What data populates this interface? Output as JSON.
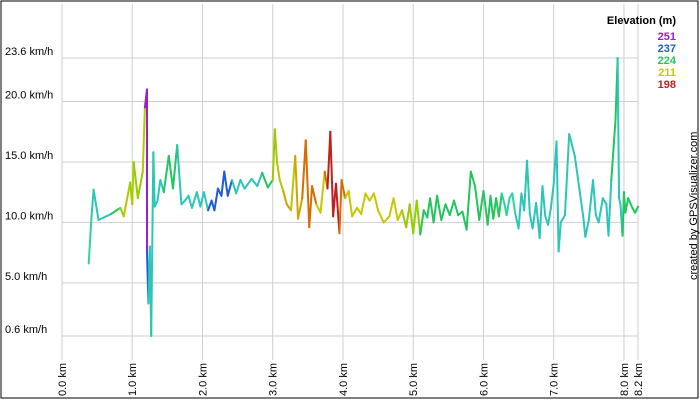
{
  "chart_data": {
    "type": "line",
    "credit": "created by GPSVisualizer.com",
    "legend": {
      "title": "Elevation (m)",
      "placement": "top-right",
      "entries": [
        {
          "label": "251",
          "color": "#9b1fd0"
        },
        {
          "label": "237",
          "color": "#1f5bd6"
        },
        {
          "label": "224",
          "color": "#22c55e"
        },
        {
          "label": "211",
          "color": "#c8c800"
        },
        {
          "label": "198",
          "color": "#c01e1e"
        }
      ]
    },
    "y_ticks": [
      {
        "value": 0.6,
        "label": "0.6 km/h"
      },
      {
        "value": 5.0,
        "label": "5.0 km/h"
      },
      {
        "value": 10.0,
        "label": "10.0 km/h"
      },
      {
        "value": 15.0,
        "label": "15.0 km/h"
      },
      {
        "value": 20.0,
        "label": "20.0 km/h"
      },
      {
        "value": 23.6,
        "label": "23.6 km/h"
      }
    ],
    "x_ticks": [
      {
        "value": 0.0,
        "label": "0.0 km"
      },
      {
        "value": 1.0,
        "label": "1.0 km"
      },
      {
        "value": 2.0,
        "label": "2.0 km"
      },
      {
        "value": 3.0,
        "label": "3.0 km"
      },
      {
        "value": 4.0,
        "label": "4.0 km"
      },
      {
        "value": 5.0,
        "label": "5.0 km"
      },
      {
        "value": 6.0,
        "label": "6.0 km"
      },
      {
        "value": 7.0,
        "label": "7.0 km"
      },
      {
        "value": 8.0,
        "label": "8.0 km"
      },
      {
        "value": 8.2,
        "label": "8.2 km"
      }
    ],
    "xlim": [
      0.0,
      8.2
    ],
    "ylim": [
      0.6,
      23.6
    ],
    "grid": true,
    "series": [
      {
        "color_by": "elevation",
        "points": [
          {
            "x": 0.38,
            "y": 6.6,
            "c": "#22c55e"
          },
          {
            "x": 0.42,
            "y": 10.5,
            "c": "#2ed3a0"
          },
          {
            "x": 0.45,
            "y": 12.7,
            "c": "#2bc6b8"
          },
          {
            "x": 0.52,
            "y": 10.2,
            "c": "#2bc6b8"
          },
          {
            "x": 0.7,
            "y": 10.7,
            "c": "#2bc6b8"
          },
          {
            "x": 0.83,
            "y": 11.2,
            "c": "#22c55e"
          },
          {
            "x": 0.88,
            "y": 10.5,
            "c": "#a0c800"
          },
          {
            "x": 0.97,
            "y": 13.3,
            "c": "#b5c800"
          },
          {
            "x": 1.0,
            "y": 11.5,
            "c": "#8cd200"
          },
          {
            "x": 1.02,
            "y": 15.0,
            "c": "#b5c800"
          },
          {
            "x": 1.08,
            "y": 12.0,
            "c": "#8cd200"
          },
          {
            "x": 1.15,
            "y": 14.2,
            "c": "#a0c800"
          },
          {
            "x": 1.18,
            "y": 19.5,
            "c": "#b5c800"
          },
          {
            "x": 1.21,
            "y": 21.0,
            "c": "#9b1fd0"
          },
          {
            "x": 1.21,
            "y": 7.5,
            "c": "#9b1fd0"
          },
          {
            "x": 1.23,
            "y": 3.3,
            "c": "#1f5bd6"
          },
          {
            "x": 1.25,
            "y": 8.0,
            "c": "#2bc6b8"
          },
          {
            "x": 1.27,
            "y": 0.6,
            "c": "#2bc6b8"
          },
          {
            "x": 1.3,
            "y": 15.8,
            "c": "#2bc6b8"
          },
          {
            "x": 1.32,
            "y": 11.3,
            "c": "#2bc6b8"
          },
          {
            "x": 1.36,
            "y": 11.8,
            "c": "#2bc6b8"
          },
          {
            "x": 1.4,
            "y": 13.5,
            "c": "#2bc6b8"
          },
          {
            "x": 1.45,
            "y": 12.5,
            "c": "#2bc6b8"
          },
          {
            "x": 1.52,
            "y": 15.5,
            "c": "#22c55e"
          },
          {
            "x": 1.58,
            "y": 12.8,
            "c": "#22c55e"
          },
          {
            "x": 1.64,
            "y": 16.4,
            "c": "#22c55e"
          },
          {
            "x": 1.7,
            "y": 11.5,
            "c": "#2bc6b8"
          },
          {
            "x": 1.75,
            "y": 11.8,
            "c": "#2bc6b8"
          },
          {
            "x": 1.8,
            "y": 12.2,
            "c": "#2bc6b8"
          },
          {
            "x": 1.85,
            "y": 11.2,
            "c": "#2bc6b8"
          },
          {
            "x": 1.92,
            "y": 12.5,
            "c": "#2bc6b8"
          },
          {
            "x": 1.97,
            "y": 11.3,
            "c": "#2bc6b8"
          },
          {
            "x": 2.02,
            "y": 12.5,
            "c": "#2bc6b8"
          },
          {
            "x": 2.08,
            "y": 11.0,
            "c": "#2bc6b8"
          },
          {
            "x": 2.13,
            "y": 11.8,
            "c": "#1f5bd6"
          },
          {
            "x": 2.17,
            "y": 11.0,
            "c": "#1f5bd6"
          },
          {
            "x": 2.22,
            "y": 12.8,
            "c": "#1f5bd6"
          },
          {
            "x": 2.27,
            "y": 12.2,
            "c": "#1f5bd6"
          },
          {
            "x": 2.31,
            "y": 14.2,
            "c": "#1f5bd6"
          },
          {
            "x": 2.36,
            "y": 12.2,
            "c": "#1f5bd6"
          },
          {
            "x": 2.42,
            "y": 13.5,
            "c": "#1f5bd6"
          },
          {
            "x": 2.48,
            "y": 12.4,
            "c": "#2bc6b8"
          },
          {
            "x": 2.54,
            "y": 13.5,
            "c": "#2bc6b8"
          },
          {
            "x": 2.6,
            "y": 12.8,
            "c": "#2bc6b8"
          },
          {
            "x": 2.7,
            "y": 13.6,
            "c": "#2bc6b8"
          },
          {
            "x": 2.78,
            "y": 13.0,
            "c": "#2bc6b8"
          },
          {
            "x": 2.85,
            "y": 14.1,
            "c": "#2bc6b8"
          },
          {
            "x": 2.93,
            "y": 12.9,
            "c": "#22c55e"
          },
          {
            "x": 3.0,
            "y": 13.5,
            "c": "#22c55e"
          },
          {
            "x": 3.03,
            "y": 17.7,
            "c": "#a0c800"
          },
          {
            "x": 3.06,
            "y": 15.0,
            "c": "#a0c800"
          },
          {
            "x": 3.1,
            "y": 13.5,
            "c": "#b5c800"
          },
          {
            "x": 3.15,
            "y": 12.6,
            "c": "#b5c800"
          },
          {
            "x": 3.2,
            "y": 11.5,
            "c": "#d4a200"
          },
          {
            "x": 3.26,
            "y": 11.0,
            "c": "#d4a200"
          },
          {
            "x": 3.32,
            "y": 15.5,
            "c": "#b5c800"
          },
          {
            "x": 3.36,
            "y": 10.3,
            "c": "#d4a200"
          },
          {
            "x": 3.42,
            "y": 12.0,
            "c": "#d4a200"
          },
          {
            "x": 3.47,
            "y": 16.8,
            "c": "#d46e00"
          },
          {
            "x": 3.52,
            "y": 9.6,
            "c": "#d46e00"
          },
          {
            "x": 3.56,
            "y": 13.0,
            "c": "#d46e00"
          },
          {
            "x": 3.62,
            "y": 11.5,
            "c": "#d46e00"
          },
          {
            "x": 3.68,
            "y": 10.8,
            "c": "#c8c800"
          },
          {
            "x": 3.74,
            "y": 14.2,
            "c": "#c8c800"
          },
          {
            "x": 3.78,
            "y": 12.8,
            "c": "#d46e00"
          },
          {
            "x": 3.82,
            "y": 17.5,
            "c": "#c01e1e"
          },
          {
            "x": 3.86,
            "y": 10.5,
            "c": "#c01e1e"
          },
          {
            "x": 3.9,
            "y": 13.2,
            "c": "#c01e1e"
          },
          {
            "x": 3.95,
            "y": 9.1,
            "c": "#c01e1e"
          },
          {
            "x": 3.98,
            "y": 13.5,
            "c": "#d46e00"
          },
          {
            "x": 4.03,
            "y": 12.0,
            "c": "#d46e00"
          },
          {
            "x": 4.08,
            "y": 12.6,
            "c": "#c8c800"
          },
          {
            "x": 4.13,
            "y": 10.5,
            "c": "#c8c800"
          },
          {
            "x": 4.2,
            "y": 11.2,
            "c": "#c8c800"
          },
          {
            "x": 4.26,
            "y": 10.7,
            "c": "#c8c800"
          },
          {
            "x": 4.32,
            "y": 12.4,
            "c": "#c8c800"
          },
          {
            "x": 4.38,
            "y": 11.8,
            "c": "#c8c800"
          },
          {
            "x": 4.44,
            "y": 12.4,
            "c": "#c8c800"
          },
          {
            "x": 4.5,
            "y": 11.0,
            "c": "#c8c800"
          },
          {
            "x": 4.58,
            "y": 10.0,
            "c": "#c8c800"
          },
          {
            "x": 4.66,
            "y": 10.5,
            "c": "#c8c800"
          },
          {
            "x": 4.72,
            "y": 12.0,
            "c": "#c8c800"
          },
          {
            "x": 4.78,
            "y": 10.2,
            "c": "#c8c800"
          },
          {
            "x": 4.84,
            "y": 11.0,
            "c": "#c8c800"
          },
          {
            "x": 4.9,
            "y": 9.6,
            "c": "#a0c800"
          },
          {
            "x": 4.95,
            "y": 11.5,
            "c": "#a0c800"
          },
          {
            "x": 5.0,
            "y": 9.1,
            "c": "#a0c800"
          },
          {
            "x": 5.05,
            "y": 11.8,
            "c": "#8cd200"
          },
          {
            "x": 5.1,
            "y": 9.0,
            "c": "#8cd200"
          },
          {
            "x": 5.15,
            "y": 11.0,
            "c": "#22c55e"
          },
          {
            "x": 5.2,
            "y": 10.4,
            "c": "#22c55e"
          },
          {
            "x": 5.24,
            "y": 12.0,
            "c": "#22c55e"
          },
          {
            "x": 5.29,
            "y": 10.0,
            "c": "#22c55e"
          },
          {
            "x": 5.34,
            "y": 12.2,
            "c": "#22c55e"
          },
          {
            "x": 5.4,
            "y": 10.2,
            "c": "#22c55e"
          },
          {
            "x": 5.46,
            "y": 11.5,
            "c": "#22c55e"
          },
          {
            "x": 5.52,
            "y": 10.6,
            "c": "#22c55e"
          },
          {
            "x": 5.58,
            "y": 11.8,
            "c": "#22c55e"
          },
          {
            "x": 5.64,
            "y": 10.6,
            "c": "#22c55e"
          },
          {
            "x": 5.7,
            "y": 10.9,
            "c": "#22c55e"
          },
          {
            "x": 5.76,
            "y": 9.4,
            "c": "#22c55e"
          },
          {
            "x": 5.82,
            "y": 14.2,
            "c": "#22c55e"
          },
          {
            "x": 5.88,
            "y": 13.0,
            "c": "#22c55e"
          },
          {
            "x": 5.94,
            "y": 10.2,
            "c": "#22c55e"
          },
          {
            "x": 6.0,
            "y": 12.6,
            "c": "#22c55e"
          },
          {
            "x": 6.06,
            "y": 9.8,
            "c": "#22c55e"
          },
          {
            "x": 6.1,
            "y": 12.2,
            "c": "#22c55e"
          },
          {
            "x": 6.14,
            "y": 10.3,
            "c": "#22c55e"
          },
          {
            "x": 6.18,
            "y": 12.0,
            "c": "#22c55e"
          },
          {
            "x": 6.22,
            "y": 10.5,
            "c": "#22c55e"
          },
          {
            "x": 6.26,
            "y": 12.4,
            "c": "#22c55e"
          },
          {
            "x": 6.3,
            "y": 11.5,
            "c": "#2ed3a0"
          },
          {
            "x": 6.33,
            "y": 10.6,
            "c": "#2ed3a0"
          },
          {
            "x": 6.37,
            "y": 12.0,
            "c": "#2ed3a0"
          },
          {
            "x": 6.41,
            "y": 12.4,
            "c": "#2ed3a0"
          },
          {
            "x": 6.45,
            "y": 10.8,
            "c": "#2ed3a0"
          },
          {
            "x": 6.5,
            "y": 9.5,
            "c": "#2bc6b8"
          },
          {
            "x": 6.54,
            "y": 12.4,
            "c": "#2bc6b8"
          },
          {
            "x": 6.58,
            "y": 11.0,
            "c": "#2bc6b8"
          },
          {
            "x": 6.62,
            "y": 15.1,
            "c": "#2bc6b8"
          },
          {
            "x": 6.66,
            "y": 10.7,
            "c": "#2bc6b8"
          },
          {
            "x": 6.7,
            "y": 9.5,
            "c": "#2bc6b8"
          },
          {
            "x": 6.75,
            "y": 11.6,
            "c": "#2bc6b8"
          },
          {
            "x": 6.8,
            "y": 8.7,
            "c": "#2bc6b8"
          },
          {
            "x": 6.84,
            "y": 13.0,
            "c": "#2bc6b8"
          },
          {
            "x": 6.88,
            "y": 10.5,
            "c": "#2bc6b8"
          },
          {
            "x": 6.92,
            "y": 9.8,
            "c": "#2bc6b8"
          },
          {
            "x": 6.96,
            "y": 11.2,
            "c": "#2bc6b8"
          },
          {
            "x": 7.0,
            "y": 13.2,
            "c": "#2bc6b8"
          },
          {
            "x": 7.04,
            "y": 16.7,
            "c": "#2bc6b8"
          },
          {
            "x": 7.07,
            "y": 7.6,
            "c": "#2bc6b8"
          },
          {
            "x": 7.1,
            "y": 10.0,
            "c": "#2bc6b8"
          },
          {
            "x": 7.16,
            "y": 10.6,
            "c": "#2bc6b8"
          },
          {
            "x": 7.22,
            "y": 17.3,
            "c": "#2bc6b8"
          },
          {
            "x": 7.3,
            "y": 15.5,
            "c": "#2bc6b8"
          },
          {
            "x": 7.36,
            "y": 13.0,
            "c": "#2bc6b8"
          },
          {
            "x": 7.42,
            "y": 10.5,
            "c": "#2bc6b8"
          },
          {
            "x": 7.45,
            "y": 8.8,
            "c": "#2bc6b8"
          },
          {
            "x": 7.5,
            "y": 10.2,
            "c": "#2bc6b8"
          },
          {
            "x": 7.56,
            "y": 13.5,
            "c": "#2bc6b8"
          },
          {
            "x": 7.6,
            "y": 10.6,
            "c": "#2bc6b8"
          },
          {
            "x": 7.64,
            "y": 10.0,
            "c": "#2bc6b8"
          },
          {
            "x": 7.7,
            "y": 12.0,
            "c": "#2bc6b8"
          },
          {
            "x": 7.75,
            "y": 11.5,
            "c": "#2bc6b8"
          },
          {
            "x": 7.78,
            "y": 8.9,
            "c": "#2bc6b8"
          },
          {
            "x": 7.82,
            "y": 13.5,
            "c": "#2bc6b8"
          },
          {
            "x": 7.88,
            "y": 18.5,
            "c": "#22c55e"
          },
          {
            "x": 7.91,
            "y": 23.6,
            "c": "#22c55e"
          },
          {
            "x": 7.93,
            "y": 12.0,
            "c": "#2bc6b8"
          },
          {
            "x": 7.95,
            "y": 11.5,
            "c": "#2bc6b8"
          },
          {
            "x": 7.98,
            "y": 8.9,
            "c": "#2bc6b8"
          },
          {
            "x": 8.0,
            "y": 12.5,
            "c": "#22c55e"
          },
          {
            "x": 8.02,
            "y": 10.8,
            "c": "#22c55e"
          },
          {
            "x": 8.06,
            "y": 12.0,
            "c": "#22c55e"
          },
          {
            "x": 8.12,
            "y": 11.2,
            "c": "#22c55e"
          },
          {
            "x": 8.16,
            "y": 10.8,
            "c": "#22c55e"
          },
          {
            "x": 8.2,
            "y": 11.3,
            "c": "#22c55e"
          }
        ]
      }
    ]
  }
}
